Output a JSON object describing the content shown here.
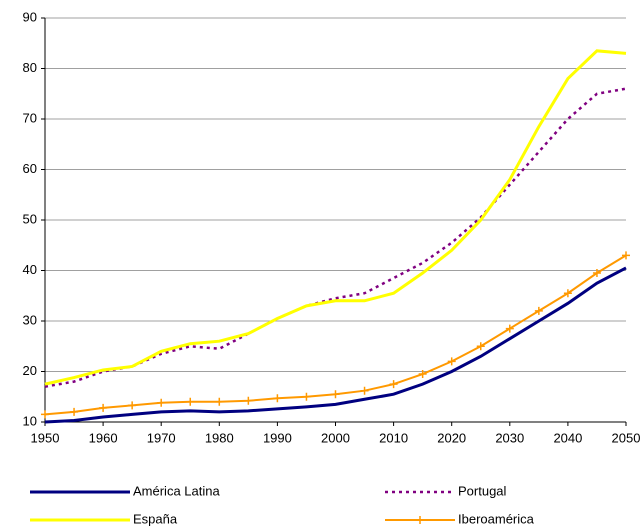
{
  "chart_data": {
    "type": "line",
    "x": [
      1950,
      1955,
      1960,
      1965,
      1970,
      1975,
      1980,
      1985,
      1990,
      1995,
      2000,
      2005,
      2010,
      2015,
      2020,
      2025,
      2030,
      2035,
      2040,
      2045,
      2050
    ],
    "series": [
      {
        "name": "América Latina",
        "color": "#000080",
        "style": "solid",
        "values": [
          10,
          10.3,
          11,
          11.5,
          12,
          12.2,
          12,
          12.2,
          12.6,
          13,
          13.5,
          14.5,
          15.5,
          17.5,
          20,
          23,
          26.5,
          30,
          33.5,
          37.5,
          40.5
        ]
      },
      {
        "name": "Portugal",
        "color": "#800080",
        "style": "dashed",
        "values": [
          17,
          18,
          20,
          21,
          23.5,
          25,
          24.5,
          27.5,
          30.5,
          33,
          34.5,
          35.5,
          38.5,
          41.5,
          45.5,
          50.5,
          57,
          63.5,
          70,
          75,
          76
        ]
      },
      {
        "name": "España",
        "color": "#ffff00",
        "style": "solid",
        "values": [
          17.5,
          18.8,
          20.3,
          21,
          24,
          25.5,
          26,
          27.5,
          30.5,
          33,
          34,
          34,
          35.5,
          39.5,
          44,
          50,
          58,
          68.5,
          78,
          83.5,
          83
        ]
      },
      {
        "name": "Iberoamérica",
        "color": "#ff9900",
        "style": "cross",
        "values": [
          11.5,
          12,
          12.8,
          13.3,
          13.8,
          14,
          14,
          14.2,
          14.7,
          15,
          15.5,
          16.2,
          17.5,
          19.5,
          22,
          25,
          28.5,
          32,
          35.5,
          39.5,
          43
        ]
      }
    ],
    "xlim": [
      1950,
      2050
    ],
    "xticks": [
      1950,
      1960,
      1970,
      1980,
      1990,
      2000,
      2010,
      2020,
      2030,
      2040,
      2050
    ],
    "ylim": [
      10,
      90
    ],
    "yticks": [
      10,
      20,
      30,
      40,
      50,
      60,
      70,
      80,
      90
    ],
    "grid": true
  }
}
